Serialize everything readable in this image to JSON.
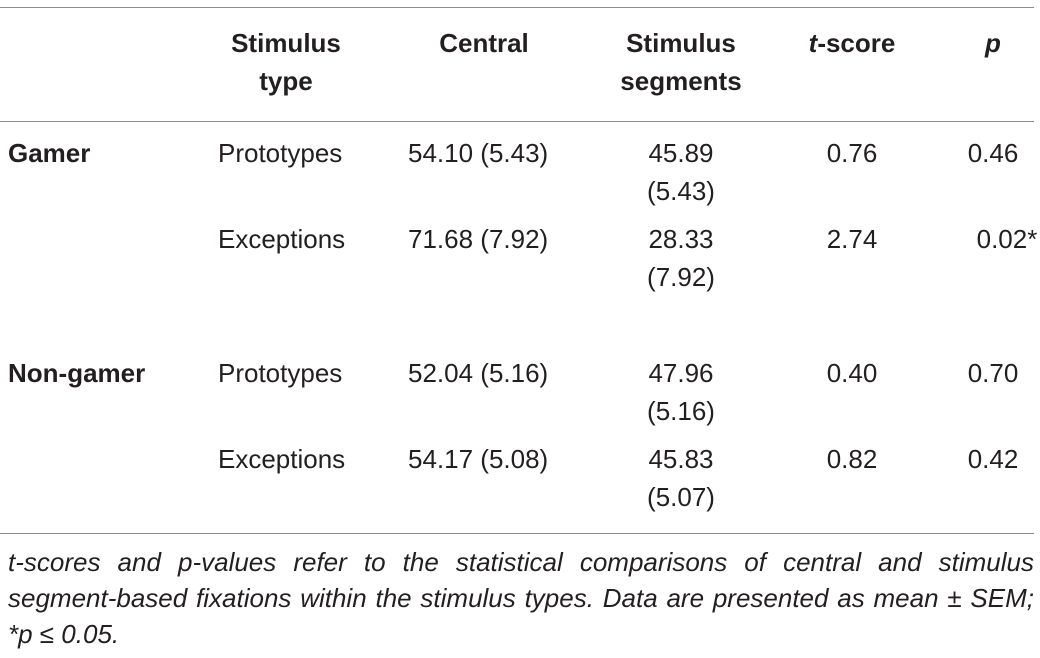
{
  "table": {
    "headers": {
      "stimulus_type": [
        "Stimulus",
        "type"
      ],
      "central": "Central",
      "stimulus_segments": [
        "Stimulus",
        "segments"
      ],
      "t_score_italic": "t",
      "t_score_rest": "-score",
      "p": "p"
    },
    "groups": [
      {
        "name": "Gamer",
        "rows": [
          {
            "type": "Prototypes",
            "central": "54.10 (5.43)",
            "segments": [
              "45.89",
              "(5.43)"
            ],
            "t": "0.76",
            "p": "0.46"
          },
          {
            "type": "Exceptions",
            "central": "71.68 (7.92)",
            "segments": [
              "28.33",
              "(7.92)"
            ],
            "t": "2.74",
            "p": "0.02*"
          }
        ]
      },
      {
        "name": "Non-gamer",
        "rows": [
          {
            "type": "Prototypes",
            "central": "52.04 (5.16)",
            "segments": [
              "47.96",
              "(5.16)"
            ],
            "t": "0.40",
            "p": "0.70"
          },
          {
            "type": "Exceptions",
            "central": "54.17 (5.08)",
            "segments": [
              "45.83",
              "(5.07)"
            ],
            "t": "0.82",
            "p": "0.42"
          }
        ]
      }
    ],
    "footnote": "t-scores and p-values refer to the statistical comparisons of central and stimulus segment-based fixations within the stimulus types. Data are presented as mean ± SEM; *p ≤ 0.05."
  }
}
